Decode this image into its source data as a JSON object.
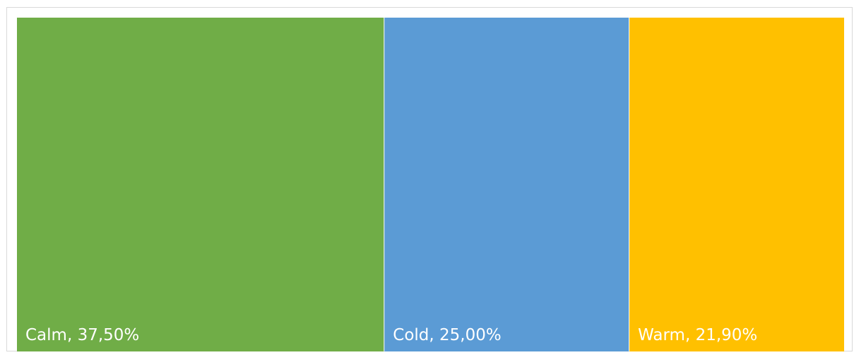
{
  "chart_data": {
    "type": "treemap",
    "title": "",
    "items": [
      {
        "label": "Calm, 37,50%",
        "category": "Calm",
        "value": 37.5,
        "color": "#70AD47"
      },
      {
        "label": "Cold, 25,00%",
        "category": "Cold",
        "value": 25.0,
        "color": "#5B9BD5"
      },
      {
        "label": "Warm, 21,90%",
        "category": "Warm",
        "value": 21.9,
        "color": "#FFC000"
      }
    ]
  }
}
